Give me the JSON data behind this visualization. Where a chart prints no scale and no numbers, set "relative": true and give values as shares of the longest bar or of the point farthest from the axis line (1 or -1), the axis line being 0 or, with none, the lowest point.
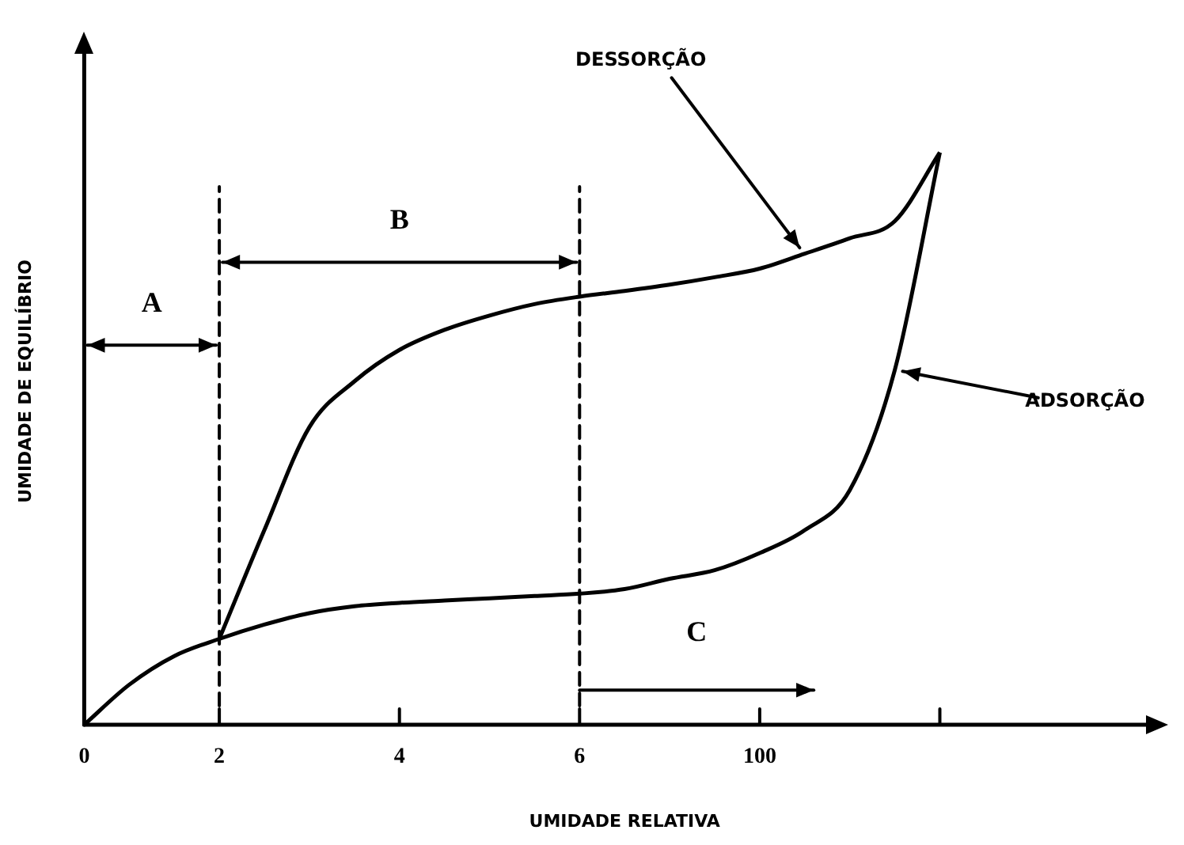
{
  "chart_data": {
    "type": "line",
    "relative": true,
    "xlabel": "UMIDADE RELATIVA",
    "ylabel": "UMIDADE DE EQUILÍBRIO",
    "categories": [
      "0",
      null,
      null,
      "2",
      null,
      null,
      null,
      "4",
      null,
      null,
      null,
      "6",
      null,
      null,
      null,
      "100",
      null,
      null,
      null,
      null,
      null,
      null,
      null,
      null,
      null
    ],
    "grid": false,
    "legend": false,
    "marker": "none",
    "line_style": "solid",
    "series": [
      {
        "color": "#000000",
        "values": [
          0,
          0.07,
          0.12,
          0.15,
          0.175,
          0.195,
          0.207,
          0.213,
          0.217,
          0.221,
          0.225,
          0.229,
          0.237,
          0.255,
          0.27,
          0.3,
          0.34,
          0.41,
          0.62,
          1,
          null,
          null,
          null,
          null,
          null
        ]
      },
      {
        "color": "#000000",
        "values": [
          null,
          null,
          null,
          0.15,
          0.34,
          0.52,
          0.6,
          0.655,
          0.69,
          0.715,
          0.735,
          0.748,
          0.758,
          0.769,
          0.782,
          0.797,
          0.823,
          0.85,
          0.88,
          1,
          null,
          null,
          null,
          null,
          null
        ]
      }
    ],
    "ref_lines": [
      {
        "axis": "x",
        "value": "2",
        "line_style": "dashed"
      },
      {
        "axis": "x",
        "value": "6",
        "line_style": "dashed"
      }
    ],
    "annotations": [
      "A",
      "B",
      "C",
      "DESSORÇÃO",
      "ADSORÇÃO"
    ]
  }
}
